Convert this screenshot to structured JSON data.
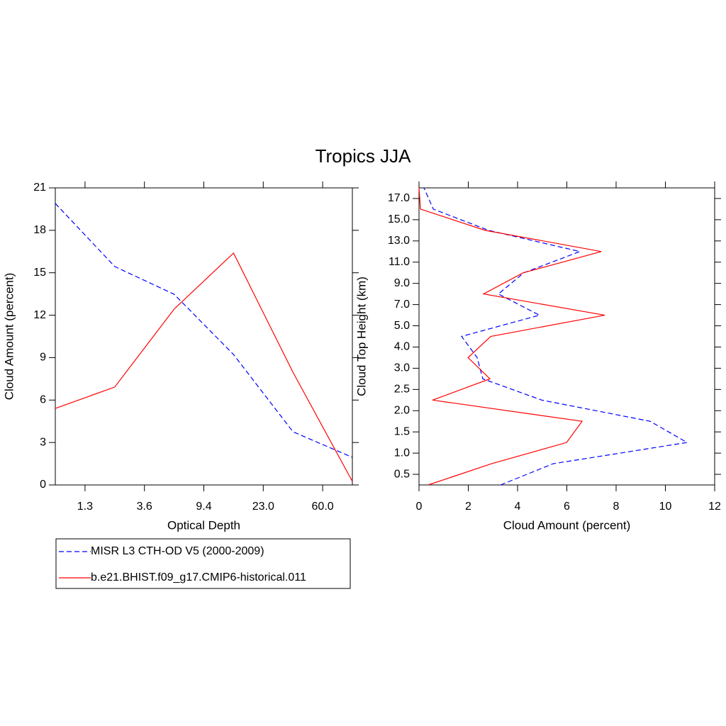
{
  "title": "Tropics JJA",
  "chart_data": [
    {
      "type": "line",
      "x_label": "Optical Depth",
      "y_label": "Cloud Amount (percent)",
      "x": [
        0,
        1,
        2,
        3,
        4,
        5
      ],
      "xlim": [
        0,
        5
      ],
      "xticks": [
        {
          "value": 0.5,
          "label": "1.3"
        },
        {
          "value": 1.5,
          "label": "3.6"
        },
        {
          "value": 2.5,
          "label": "9.4"
        },
        {
          "value": 3.5,
          "label": "23.0"
        },
        {
          "value": 4.5,
          "label": "60.0"
        }
      ],
      "ylim": [
        0,
        21
      ],
      "yticks": [
        0,
        3,
        6,
        9,
        12,
        15,
        18,
        21
      ],
      "series": [
        {
          "name": "MISR L3 CTH-OD V5 (2000-2009)",
          "color": "#0000ff",
          "style": "dashed",
          "values": [
            19.9,
            15.44,
            13.48,
            9.22,
            3.76,
            1.95
          ]
        },
        {
          "name": "b.e21.BHIST.f09_g17.CMIP6-historical.011",
          "color": "#ff0000",
          "style": "solid",
          "values": [
            5.41,
            6.92,
            12.43,
            16.39,
            7.97,
            0.25
          ]
        }
      ]
    },
    {
      "type": "line",
      "x_label": "Cloud Amount (percent)",
      "y_label": "Cloud Top Height (km)",
      "y": [
        0,
        1,
        2,
        3,
        4,
        5,
        6,
        7,
        8,
        9,
        10,
        11,
        12,
        13,
        14
      ],
      "ylim": [
        0,
        14
      ],
      "yticks": [
        {
          "value": 0.5,
          "label": "0.5"
        },
        {
          "value": 1.5,
          "label": "1.0"
        },
        {
          "value": 2.5,
          "label": "1.5"
        },
        {
          "value": 3.5,
          "label": "2.0"
        },
        {
          "value": 4.5,
          "label": "2.5"
        },
        {
          "value": 5.5,
          "label": "3.0"
        },
        {
          "value": 6.5,
          "label": "4.0"
        },
        {
          "value": 7.5,
          "label": "5.0"
        },
        {
          "value": 8.5,
          "label": "7.0"
        },
        {
          "value": 9.5,
          "label": "9.0"
        },
        {
          "value": 10.5,
          "label": "11.0"
        },
        {
          "value": 11.5,
          "label": "13.0"
        },
        {
          "value": 12.5,
          "label": "15.0"
        },
        {
          "value": 13.5,
          "label": "17.0"
        }
      ],
      "xlim": [
        0,
        12
      ],
      "xticks": [
        0,
        2,
        4,
        6,
        8,
        10,
        12
      ],
      "series": [
        {
          "color": "#0000ff",
          "style": "dashed",
          "values": [
            3.31,
            5.44,
            10.88,
            9.38,
            4.98,
            2.59,
            2.36,
            1.73,
            4.89,
            3.22,
            4.26,
            6.53,
            2.82,
            0.58,
            0.2
          ]
        },
        {
          "color": "#ff0000",
          "style": "solid",
          "values": [
            0.37,
            2.94,
            5.99,
            6.62,
            0.55,
            2.88,
            1.99,
            2.91,
            7.54,
            2.62,
            4.23,
            7.4,
            2.68,
            0.06,
            0
          ]
        }
      ]
    }
  ]
}
